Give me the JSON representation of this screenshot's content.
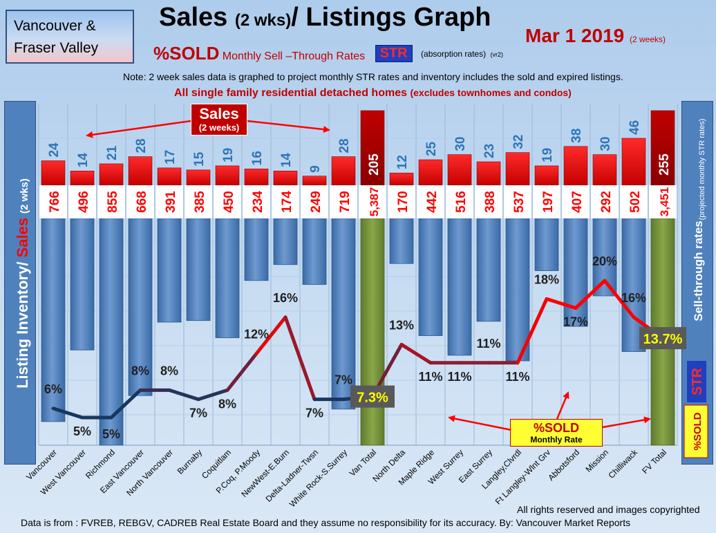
{
  "header": {
    "region_line1": "Vancouver &",
    "region_line2": "Fraser Valley",
    "title_a": "Sales",
    "title_b": "(2 wks)",
    "title_c": "/ Listings Graph",
    "date": "Mar  1  2019",
    "date_note": "(2 weeks)",
    "subtitle_sold": "%SOLD",
    "subtitle_rest": "Monthly Sell –Through Rates",
    "str_badge": "STR",
    "absorption_note": "(absorption rates)",
    "version_note": "(vr2)",
    "note": "Note: 2 week sales data is graphed to project monthly STR rates and inventory includes the sold and expired listings.",
    "scope_main": "All single family residential detached homes",
    "scope_sub": "(excludes townhomes and condos)"
  },
  "callouts": {
    "sales_title": "Sales",
    "sales_sub": "(2 weeks)",
    "sold_title": "%SOLD",
    "sold_sub": "Monthly Rate"
  },
  "axes": {
    "left_label_a": "Listing Inventory",
    "left_label_b": "Sales",
    "left_label_c": "(2  wks)",
    "right_label_main": "Sell-through rates",
    "right_label_sub": "(projected monthly STR rates)",
    "right_str": "STR",
    "right_sold": "%SOLD"
  },
  "footer": {
    "copyright": "All rights reserved and  images copyrighted",
    "source": "Data is from : FVREB, REBGV, CADREB Real Estate Board and they assume no responsibility for its accuracy. By: Vancouver Market Reports"
  },
  "colors": {
    "inventory_bar": "#4f81bd",
    "total_bar": "#77933c",
    "sales_bar": "#ff0000",
    "sales_total_bar": "#c00000",
    "sales_label": "#2e75b6",
    "inventory_label": "#ff0000"
  },
  "chart_data": {
    "type": "bar",
    "categories": [
      "Vancouver",
      "West Vancouver",
      "Richmond",
      "East Vancouver",
      "North Vancouver",
      "Burnaby",
      "Coquitlam",
      "P.Coq, P.Moody",
      "NewWest-E.Burn",
      "Delta-Ladner-Twsn",
      "White Rock-S.Surrey",
      "Van Total",
      "North Delta",
      "Maple Ridge",
      "West Surrey",
      "East Surrey",
      "Langley,Clvrdl",
      "Ft Langley-Wlnt Grv",
      "Abbotsford",
      "Mission",
      "Chilliwack",
      "FV Total"
    ],
    "series": [
      {
        "name": "Sales",
        "values": [
          24,
          14,
          21,
          28,
          17,
          15,
          19,
          16,
          14,
          9,
          28,
          205,
          12,
          25,
          30,
          23,
          32,
          19,
          38,
          30,
          46,
          255
        ],
        "labels": [
          "24",
          "14",
          "21",
          "28",
          "17",
          "15",
          "19",
          "16",
          "14",
          "9",
          "28",
          "205",
          "12",
          "25",
          "30",
          "23",
          "32",
          "19",
          "38",
          "30",
          "46",
          "255"
        ]
      },
      {
        "name": "Listing Inventory",
        "values": [
          766,
          496,
          855,
          668,
          391,
          385,
          450,
          234,
          174,
          249,
          719,
          5387,
          170,
          442,
          516,
          388,
          537,
          197,
          407,
          292,
          502,
          3451
        ],
        "labels": [
          "766",
          "496",
          "855",
          "668",
          "391",
          "385",
          "450",
          "234",
          "174",
          "249",
          "719",
          "5,387",
          "170",
          "442",
          "516",
          "388",
          "537",
          "197",
          "407",
          "292",
          "502",
          "3,451"
        ]
      },
      {
        "name": "%SOLD",
        "values": [
          6,
          5,
          5,
          8,
          8,
          7,
          8,
          12,
          16,
          7,
          7,
          7.3,
          13,
          11,
          11,
          11,
          11,
          18,
          17,
          20,
          16,
          13.7
        ],
        "labels": [
          "6%",
          "5%",
          "5%",
          "8%",
          "8%",
          "7%",
          "8%",
          "12%",
          "16%",
          "7%",
          "7%",
          "7.3%",
          "13%",
          "11%",
          "11%",
          "11%",
          "11%",
          "18%",
          "17%",
          "20%",
          "16%",
          "13.7%"
        ]
      }
    ]
  }
}
